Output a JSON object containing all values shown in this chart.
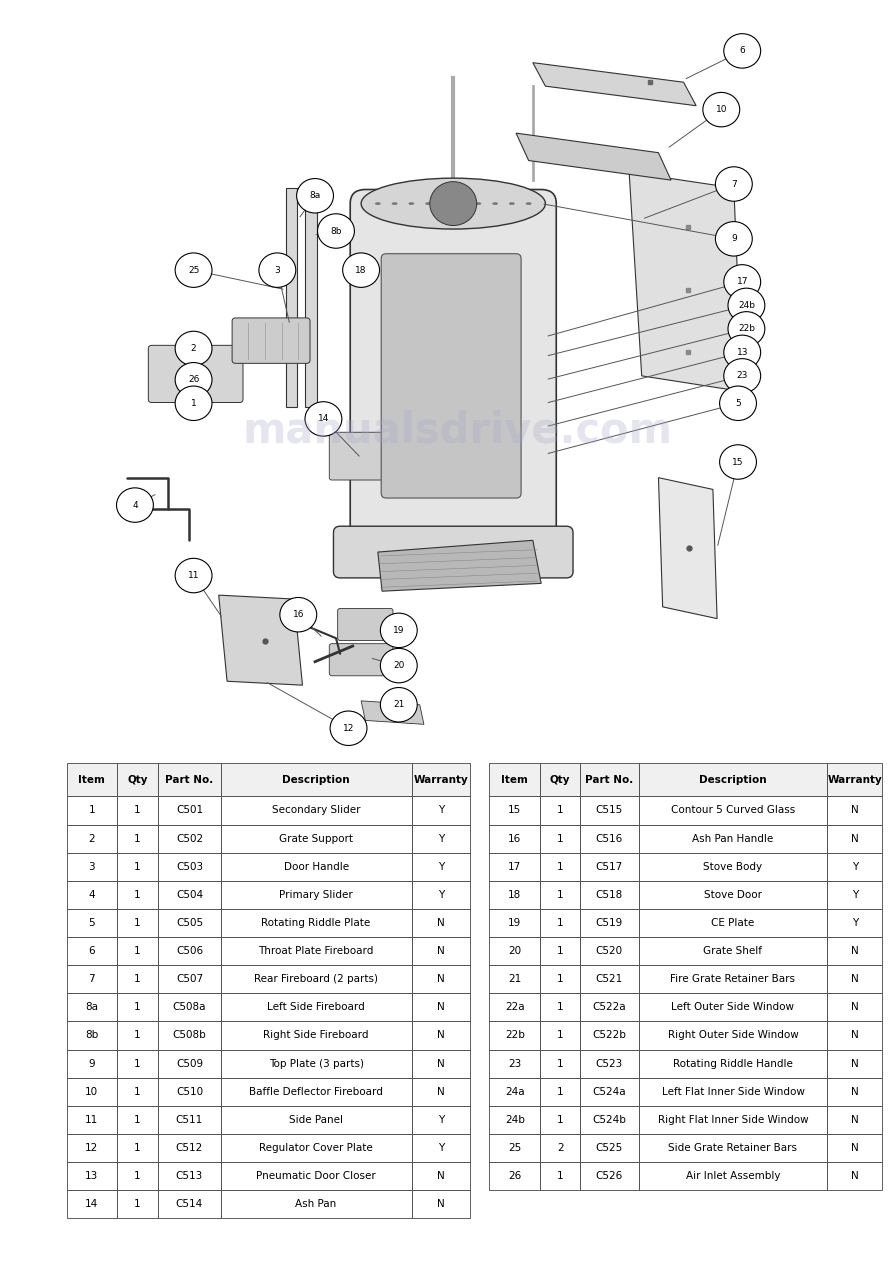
{
  "page_bg": "#ffffff",
  "left_bar_color": "#2d2d2d",
  "bottom_bar_color": "#2d2d2d",
  "table1_headers": [
    "Item",
    "Qty",
    "Part No.",
    "Description",
    "Warranty"
  ],
  "table1_rows": [
    [
      "1",
      "1",
      "C501",
      "Secondary Slider",
      "Y"
    ],
    [
      "2",
      "1",
      "C502",
      "Grate Support",
      "Y"
    ],
    [
      "3",
      "1",
      "C503",
      "Door Handle",
      "Y"
    ],
    [
      "4",
      "1",
      "C504",
      "Primary Slider",
      "Y"
    ],
    [
      "5",
      "1",
      "C505",
      "Rotating Riddle Plate",
      "N"
    ],
    [
      "6",
      "1",
      "C506",
      "Throat Plate Fireboard",
      "N"
    ],
    [
      "7",
      "1",
      "C507",
      "Rear Fireboard (2 parts)",
      "N"
    ],
    [
      "8a",
      "1",
      "C508a",
      "Left Side Fireboard",
      "N"
    ],
    [
      "8b",
      "1",
      "C508b",
      "Right Side Fireboard",
      "N"
    ],
    [
      "9",
      "1",
      "C509",
      "Top Plate (3 parts)",
      "N"
    ],
    [
      "10",
      "1",
      "C510",
      "Baffle Deflector Fireboard",
      "N"
    ],
    [
      "11",
      "1",
      "C511",
      "Side Panel",
      "Y"
    ],
    [
      "12",
      "1",
      "C512",
      "Regulator Cover Plate",
      "Y"
    ],
    [
      "13",
      "1",
      "C513",
      "Pneumatic Door Closer",
      "N"
    ],
    [
      "14",
      "1",
      "C514",
      "Ash Pan",
      "N"
    ]
  ],
  "table2_headers": [
    "Item",
    "Qty",
    "Part No.",
    "Description",
    "Warranty"
  ],
  "table2_rows": [
    [
      "15",
      "1",
      "C515",
      "Contour 5 Curved Glass",
      "N"
    ],
    [
      "16",
      "1",
      "C516",
      "Ash Pan Handle",
      "N"
    ],
    [
      "17",
      "1",
      "C517",
      "Stove Body",
      "Y"
    ],
    [
      "18",
      "1",
      "C518",
      "Stove Door",
      "Y"
    ],
    [
      "19",
      "1",
      "C519",
      "CE Plate",
      "Y"
    ],
    [
      "20",
      "1",
      "C520",
      "Grate Shelf",
      "N"
    ],
    [
      "21",
      "1",
      "C521",
      "Fire Grate Retainer Bars",
      "N"
    ],
    [
      "22a",
      "1",
      "C522a",
      "Left Outer Side Window",
      "N"
    ],
    [
      "22b",
      "1",
      "C522b",
      "Right Outer Side Window",
      "N"
    ],
    [
      "23",
      "1",
      "C523",
      "Rotating Riddle Handle",
      "N"
    ],
    [
      "24a",
      "1",
      "C524a",
      "Left Flat Inner Side Window",
      "N"
    ],
    [
      "24b",
      "1",
      "C524b",
      "Right Flat Inner Side Window",
      "N"
    ],
    [
      "25",
      "2",
      "C525",
      "Side Grate Retainer Bars",
      "N"
    ],
    [
      "26",
      "1",
      "C526",
      "Air Inlet Assembly",
      "N"
    ]
  ],
  "watermark_text": "manualsdrive.com",
  "watermark_color": "#aaaacc",
  "watermark_alpha": 0.3,
  "diag_line_color": "#555555",
  "diag_part_fill": "#e0e0e0",
  "diag_part_edge": "#333333",
  "labels_data": [
    [
      "6",
      8.2,
      9.35,
      7.5,
      8.98
    ],
    [
      "10",
      7.95,
      8.6,
      7.3,
      8.1
    ],
    [
      "7",
      8.1,
      7.65,
      7.0,
      7.2
    ],
    [
      "8a",
      3.1,
      7.5,
      2.9,
      7.2
    ],
    [
      "8b",
      3.35,
      7.05,
      3.08,
      7.0
    ],
    [
      "9",
      8.1,
      6.95,
      5.8,
      7.4
    ],
    [
      "17",
      8.2,
      6.4,
      5.85,
      5.7
    ],
    [
      "24b",
      8.25,
      6.1,
      5.85,
      5.45
    ],
    [
      "22b",
      8.25,
      5.8,
      5.85,
      5.15
    ],
    [
      "13",
      8.2,
      5.5,
      5.85,
      4.85
    ],
    [
      "23",
      8.2,
      5.2,
      5.85,
      4.55
    ],
    [
      "5",
      8.15,
      4.85,
      5.85,
      4.2
    ],
    [
      "15",
      8.15,
      4.1,
      7.9,
      3.0
    ],
    [
      "25",
      1.65,
      6.55,
      2.75,
      6.3
    ],
    [
      "3",
      2.65,
      6.55,
      2.8,
      5.85
    ],
    [
      "18",
      3.65,
      6.55,
      3.75,
      6.65
    ],
    [
      "2",
      1.65,
      5.55,
      1.8,
      5.35
    ],
    [
      "26",
      1.65,
      5.15,
      1.8,
      5.15
    ],
    [
      "1",
      1.65,
      4.85,
      1.8,
      4.95
    ],
    [
      "14",
      3.2,
      4.65,
      3.65,
      4.15
    ],
    [
      "4",
      0.95,
      3.55,
      1.22,
      3.7
    ],
    [
      "11",
      1.65,
      2.65,
      2.0,
      2.1
    ],
    [
      "16",
      2.9,
      2.15,
      3.2,
      1.85
    ],
    [
      "19",
      4.1,
      1.95,
      3.85,
      2.0
    ],
    [
      "20",
      4.1,
      1.5,
      3.75,
      1.6
    ],
    [
      "21",
      4.1,
      1.0,
      4.3,
      0.95
    ],
    [
      "12",
      3.5,
      0.7,
      2.5,
      1.3
    ]
  ]
}
